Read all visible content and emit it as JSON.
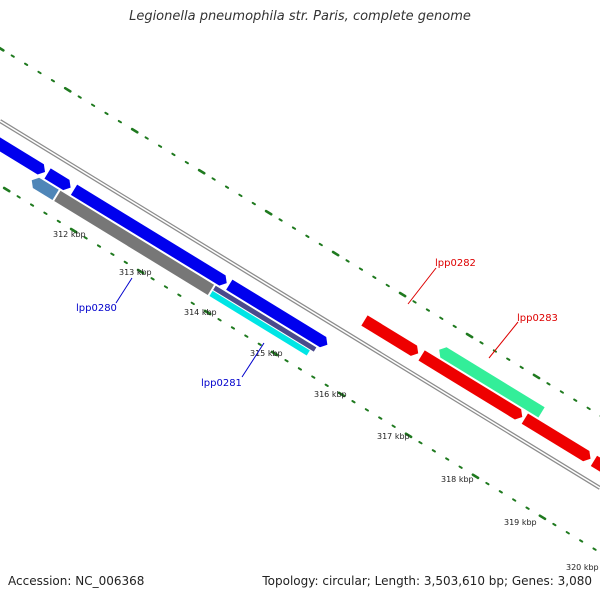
{
  "title": "Legionella pneumophila str. Paris, complete genome",
  "footer": {
    "accession": "Accession: NC_006368",
    "summary": "Topology: circular; Length: 3,503,610 bp; Genes: 3,080"
  },
  "colors": {
    "backbone": "#8c8c8c",
    "tick": "#1f7a1f",
    "forward_cds": "#0000ee",
    "reverse_cds": "#ee0000",
    "gray_gene": "#777777",
    "steel_gene": "#4f86b8",
    "cyan_gene": "#00e5e5",
    "mint_gene": "#33ee99",
    "navy_gene": "#4a4a8c",
    "forward_label": "#0000cc",
    "reverse_label": "#dd0000"
  },
  "ticks": [
    {
      "label": "312 kbp"
    },
    {
      "label": "313 kbp"
    },
    {
      "label": "314 kbp"
    },
    {
      "label": "315 kbp"
    },
    {
      "label": "316 kbp"
    },
    {
      "label": "317 kbp"
    },
    {
      "label": "318 kbp"
    },
    {
      "label": "319 kbp"
    },
    {
      "label": "320 kbp"
    }
  ],
  "gene_labels": [
    {
      "text": "lpp0280",
      "strand": "forward"
    },
    {
      "text": "lpp0281",
      "strand": "forward"
    },
    {
      "text": "lpp0282",
      "strand": "reverse"
    },
    {
      "text": "lpp0283",
      "strand": "reverse"
    }
  ]
}
